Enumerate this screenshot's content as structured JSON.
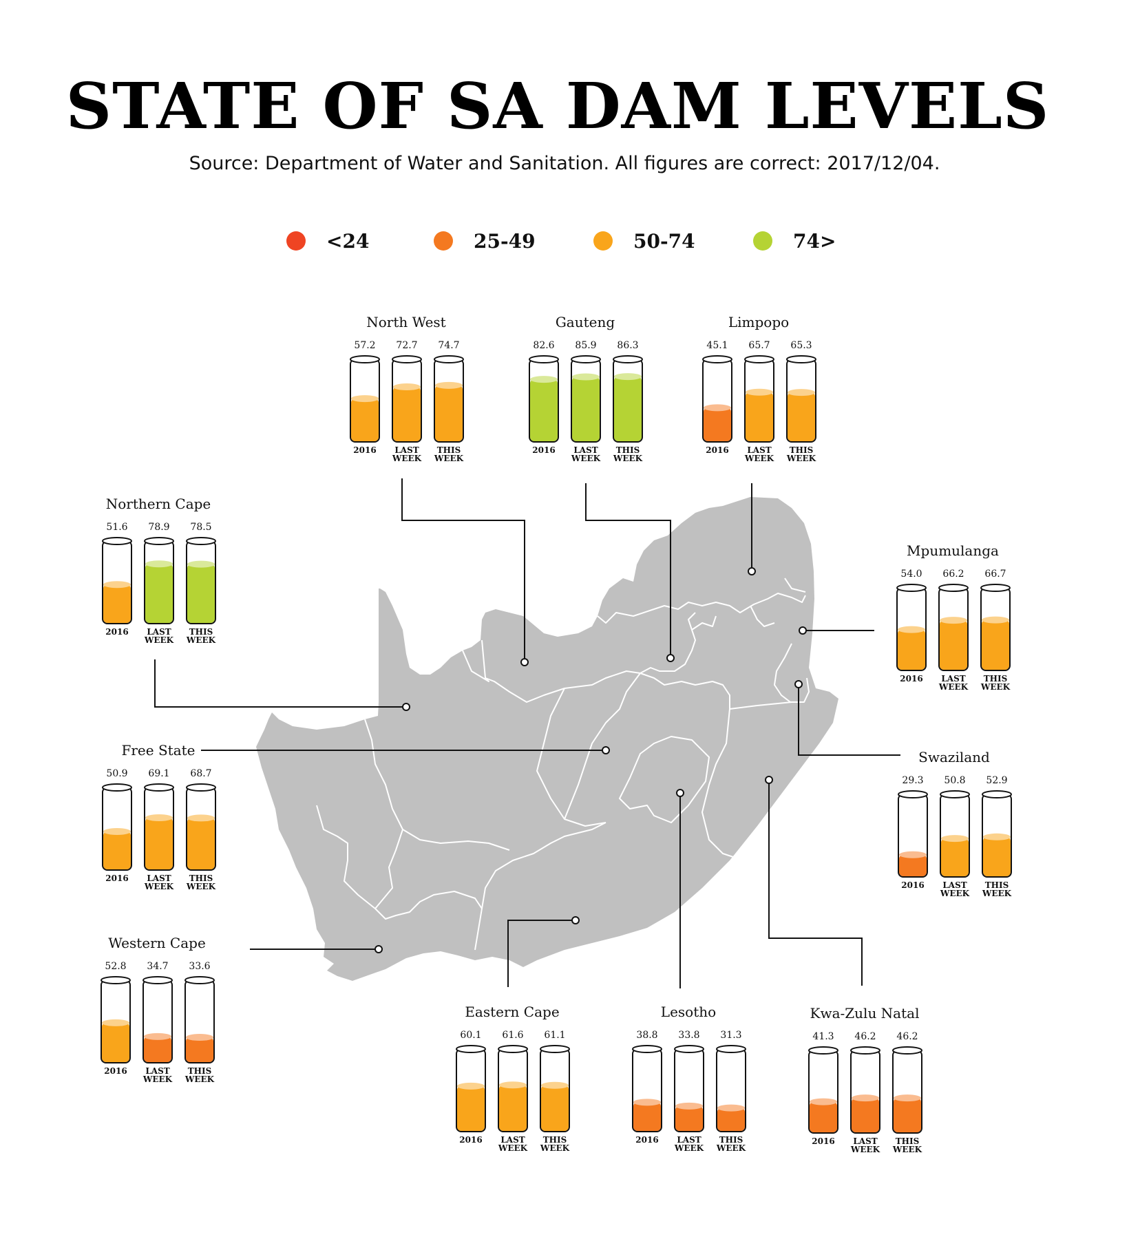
{
  "title": "STATE OF SA DAM LEVELS",
  "subtitle": "Source: Department of Water and Sanitation. All figures are correct: 2017/12/04.",
  "legend": [
    {
      "label": "<24",
      "color": "#ef4423"
    },
    {
      "label": "25-49",
      "color": "#f47920"
    },
    {
      "label": "50-74",
      "color": "#f9a51b"
    },
    {
      "label": "74>",
      "color": "#b5d334"
    }
  ],
  "chart_data": {
    "type": "bar",
    "categories": [
      "2016",
      "LAST WEEK",
      "THIS WEEK"
    ],
    "unit": "%",
    "regions": [
      {
        "name": "North West",
        "values": [
          57.2,
          72.7,
          74.7
        ],
        "labels": [
          "57.2",
          "72.7",
          "74.7"
        ]
      },
      {
        "name": "Gauteng",
        "values": [
          82.6,
          85.9,
          86.3
        ],
        "labels": [
          "82.6",
          "85.9",
          "86.3"
        ]
      },
      {
        "name": "Limpopo",
        "values": [
          45.1,
          65.7,
          65.3
        ],
        "labels": [
          "45.1",
          "65.7",
          "65.3"
        ]
      },
      {
        "name": "Northern Cape",
        "values": [
          51.6,
          78.9,
          78.5
        ],
        "labels": [
          "51.6",
          "78.9",
          "78.5"
        ]
      },
      {
        "name": "Mpumulanga",
        "values": [
          54.0,
          66.2,
          66.7
        ],
        "labels": [
          "54.0",
          "66.2",
          "66.7"
        ]
      },
      {
        "name": "Free State",
        "values": [
          50.9,
          69.1,
          68.7
        ],
        "labels": [
          "50.9",
          "69.1",
          "68.7"
        ]
      },
      {
        "name": "Swaziland",
        "values": [
          29.3,
          50.8,
          52.9
        ],
        "labels": [
          "29.3",
          "50.8",
          "52.9"
        ]
      },
      {
        "name": "Western Cape",
        "values": [
          52.8,
          34.7,
          33.6
        ],
        "labels": [
          "52.8",
          "34.7",
          "33.6"
        ]
      },
      {
        "name": "Eastern Cape",
        "values": [
          60.1,
          61.6,
          61.1
        ],
        "labels": [
          "60.1",
          "61.6",
          "61.1"
        ]
      },
      {
        "name": "Lesotho",
        "values": [
          38.8,
          33.8,
          31.3
        ],
        "labels": [
          "38.8",
          "33.8",
          "31.3"
        ]
      },
      {
        "name": "Kwa-Zulu Natal",
        "values": [
          41.3,
          46.2,
          46.2
        ],
        "labels": [
          "41.3",
          "46.2",
          "46.2"
        ]
      }
    ]
  }
}
